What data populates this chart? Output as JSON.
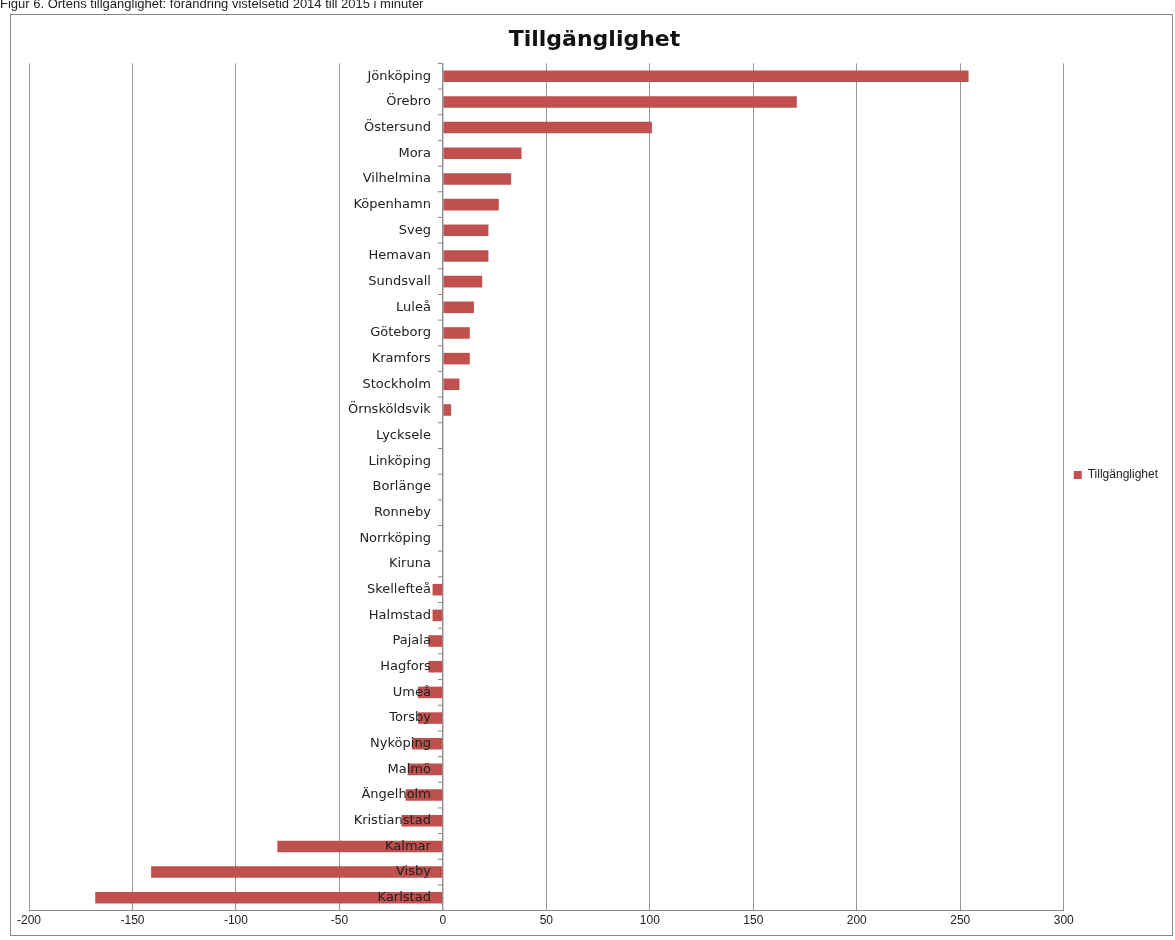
{
  "chart_data": {
    "type": "bar",
    "orientation": "horizontal",
    "title": "Tillgänglighet",
    "annotations": [
      "Figur 6. Ortens tillgänglighet: förändring vistelsetid 2014 till 2015 i minuter"
    ],
    "categories": [
      "Jönköping",
      "Örebro",
      "Östersund",
      "Mora",
      "Vilhelmina",
      "Köpenhamn",
      "Sveg",
      "Hemavan",
      "Sundsvall",
      "Luleå",
      "Göteborg",
      "Kramfors",
      "Stockholm",
      "Örnsköldsvik",
      "Lycksele",
      "Linköping",
      "Borlänge",
      "Ronneby",
      "Norrköping",
      "Kiruna",
      "Skellefteå",
      "Halmstad",
      "Pajala",
      "Hagfors",
      "Umeå",
      "Torsby",
      "Nyköping",
      "Malmö",
      "Ängelholm",
      "Kristianstad",
      "Kalmar",
      "Visby",
      "Karlstad"
    ],
    "series": [
      {
        "name": "Tillgänglighet",
        "color": "#c0504d",
        "values": [
          254,
          171,
          101,
          38,
          33,
          27,
          22,
          22,
          19,
          15,
          13,
          13,
          8,
          4,
          0,
          0,
          0,
          0,
          0,
          0,
          -5,
          -5,
          -7,
          -7,
          -12,
          -12,
          -15,
          -17,
          -18,
          -20,
          -80,
          -141,
          -168
        ]
      }
    ],
    "xlim": [
      -200,
      300
    ],
    "xticks": [
      -200,
      -150,
      -100,
      -50,
      0,
      50,
      100,
      150,
      200,
      250,
      300
    ],
    "grid": "x",
    "legend": "right"
  }
}
